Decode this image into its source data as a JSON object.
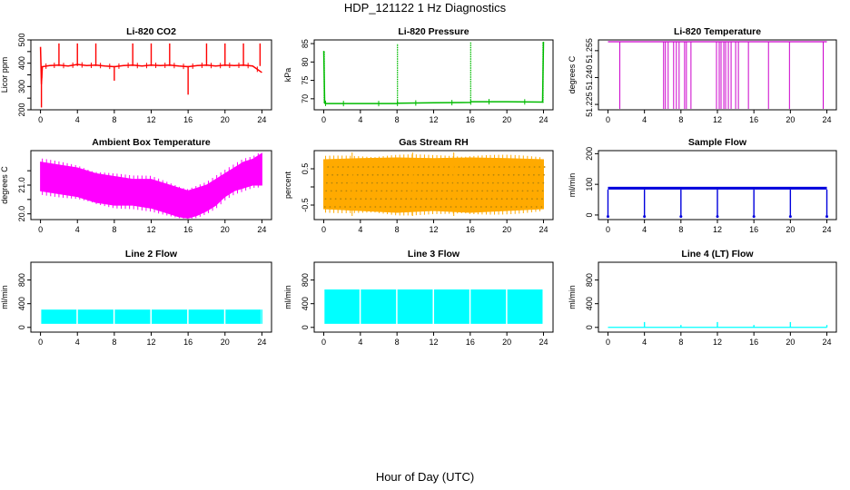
{
  "figure": {
    "title": "HDP_121122  1 Hz Diagnostics",
    "xlabel": "Hour of Day (UTC)"
  },
  "chart_data": [
    {
      "type": "line",
      "title": "Li-820 CO2",
      "ylabel": "Licor ppm",
      "color": "#ff0000",
      "xlim": [
        0,
        24
      ],
      "ylim": [
        200,
        500
      ],
      "xticks": [
        0,
        4,
        8,
        12,
        16,
        20,
        24
      ],
      "yticks": [
        200,
        250,
        300,
        350,
        400,
        450,
        500
      ],
      "yticklabels": [
        "200",
        "",
        "300",
        "",
        "400",
        "",
        "500"
      ],
      "x": [
        0.0,
        0.1,
        0.2,
        1.0,
        2.0,
        3.0,
        4.0,
        5.0,
        6.0,
        7.0,
        8.0,
        9.0,
        10.0,
        11.0,
        12.0,
        13.0,
        14.0,
        15.0,
        16.0,
        17.0,
        18.0,
        19.0,
        20.0,
        21.0,
        22.0,
        23.0,
        24.0
      ],
      "y": [
        470,
        310,
        385,
        390,
        392,
        388,
        395,
        390,
        392,
        388,
        385,
        390,
        392,
        388,
        392,
        390,
        392,
        388,
        385,
        390,
        392,
        388,
        392,
        390,
        392,
        388,
        360
      ],
      "spikes": [
        {
          "x": 0.1,
          "y": 210
        },
        {
          "x": 2.0,
          "y": 485
        },
        {
          "x": 4.0,
          "y": 485
        },
        {
          "x": 6.0,
          "y": 485
        },
        {
          "x": 8.0,
          "y": 325
        },
        {
          "x": 10.0,
          "y": 485
        },
        {
          "x": 12.0,
          "y": 485
        },
        {
          "x": 14.0,
          "y": 485
        },
        {
          "x": 16.0,
          "y": 265
        },
        {
          "x": 18.0,
          "y": 485
        },
        {
          "x": 20.0,
          "y": 485
        },
        {
          "x": 22.0,
          "y": 485
        },
        {
          "x": 23.8,
          "y": 485
        }
      ]
    },
    {
      "type": "line",
      "title": "Li-820 Pressure",
      "ylabel": "kPa",
      "color": "#00bb00",
      "xlim": [
        0,
        24
      ],
      "ylim": [
        67,
        86
      ],
      "xticks": [
        0,
        4,
        8,
        12,
        16,
        20,
        24
      ],
      "yticks": [
        70,
        75,
        80,
        85
      ],
      "yticklabels": [
        "70",
        "75",
        "80",
        "85"
      ],
      "x": [
        0.0,
        0.1,
        0.3,
        4.0,
        8.0,
        8.1,
        12.0,
        16.0,
        16.1,
        20.0,
        23.9,
        24.0
      ],
      "y": [
        83,
        68.8,
        68.7,
        68.7,
        68.7,
        68.8,
        68.9,
        69.0,
        69.2,
        69.2,
        69.1,
        85.5
      ],
      "spikes": [
        {
          "x": 0.05,
          "y": 83
        },
        {
          "x": 8.05,
          "y": 85
        },
        {
          "x": 16.05,
          "y": 85.5
        },
        {
          "x": 23.95,
          "y": 85.5
        }
      ]
    },
    {
      "type": "line",
      "title": "Li-820 Temperature",
      "ylabel": "degrees C",
      "color": "#cc00cc",
      "xlim": [
        0,
        24
      ],
      "ylim": [
        51.222,
        51.261
      ],
      "xticks": [
        0,
        4,
        8,
        12,
        16,
        20,
        24
      ],
      "yticks": [
        51.225,
        51.24,
        51.255
      ],
      "yticklabels": [
        "51.225",
        "51.240",
        "51.255"
      ],
      "baseline": 51.26,
      "drops_to": 51.222,
      "drop_hours": [
        1.3,
        6.1,
        6.3,
        6.6,
        7.2,
        7.5,
        7.8,
        8.4,
        8.6,
        9.1,
        11.9,
        12.2,
        12.4,
        12.7,
        12.9,
        13.2,
        13.5,
        14.0,
        14.3,
        15.4,
        17.6,
        19.9,
        23.6
      ]
    },
    {
      "type": "area",
      "title": "Ambient Box Temperature",
      "ylabel": "degrees C",
      "color": "#ff00ff",
      "xlim": [
        0,
        24
      ],
      "ylim": [
        19.8,
        22.2
      ],
      "xticks": [
        0,
        4,
        8,
        12,
        16,
        20,
        24
      ],
      "yticks": [
        20.0,
        20.5,
        21.0,
        21.5
      ],
      "yticklabels": [
        "20.0",
        "",
        "21.0",
        ""
      ],
      "x": [
        0,
        2,
        4,
        6,
        8,
        10,
        12,
        14,
        15,
        16,
        17,
        18,
        19,
        20,
        21,
        22,
        23,
        24
      ],
      "upper": [
        21.8,
        21.7,
        21.6,
        21.4,
        21.3,
        21.2,
        21.2,
        21.0,
        20.9,
        20.8,
        20.9,
        21.0,
        21.2,
        21.4,
        21.6,
        21.8,
        21.9,
        22.1
      ],
      "lower": [
        20.8,
        20.7,
        20.6,
        20.4,
        20.3,
        20.3,
        20.2,
        20.0,
        19.9,
        19.85,
        19.95,
        20.1,
        20.3,
        20.6,
        20.8,
        20.9,
        21.0,
        21.0
      ]
    },
    {
      "type": "area",
      "title": "Gas Stream RH",
      "ylabel": "percent",
      "color": "#ffaa00",
      "dot_color": "#b8860b",
      "xlim": [
        0,
        24
      ],
      "ylim": [
        -0.9,
        1.0
      ],
      "xticks": [
        0,
        4,
        8,
        12,
        16,
        20,
        24
      ],
      "yticks": [
        -0.5,
        0.0,
        0.5
      ],
      "yticklabels": [
        "-0.5",
        "",
        "0.5"
      ],
      "x": [
        0,
        4,
        8,
        12,
        16,
        20,
        24
      ],
      "upper": [
        0.75,
        0.78,
        0.8,
        0.78,
        0.8,
        0.78,
        0.75
      ],
      "lower": [
        -0.6,
        -0.65,
        -0.7,
        -0.65,
        -0.7,
        -0.65,
        -0.6
      ],
      "extreme_high": 0.95,
      "extreme_low": -0.8
    },
    {
      "type": "line",
      "title": "Sample Flow",
      "ylabel": "ml/min",
      "color": "#0000dd",
      "xlim": [
        0,
        24
      ],
      "ylim": [
        -15,
        210
      ],
      "xticks": [
        0,
        4,
        8,
        12,
        16,
        20,
        24
      ],
      "yticks": [
        0,
        100,
        200
      ],
      "yticklabels": [
        "0",
        "100",
        "200"
      ],
      "baseline_upper": 92,
      "baseline_lower": 83,
      "dip_hours": [
        0.0,
        4.0,
        8.0,
        12.0,
        16.0,
        20.0,
        24.0
      ],
      "dip_to": -5
    },
    {
      "type": "area",
      "title": "Line 2 Flow",
      "ylabel": "ml/min",
      "color": "#00ffff",
      "xlim": [
        0,
        24
      ],
      "ylim": [
        -80,
        1100
      ],
      "xticks": [
        0,
        4,
        8,
        12,
        16,
        20,
        24
      ],
      "yticks": [
        0,
        400,
        800
      ],
      "yticklabels": [
        "0",
        "400",
        "800"
      ],
      "band_upper": 300,
      "band_lower": 60,
      "gap_hours": [
        3.9,
        7.9,
        11.9,
        15.9,
        19.9
      ],
      "end_hour": 23.9
    },
    {
      "type": "area",
      "title": "Line 3 Flow",
      "ylabel": "ml/min",
      "color": "#00ffff",
      "xlim": [
        0,
        24
      ],
      "ylim": [
        -80,
        1100
      ],
      "xticks": [
        0,
        4,
        8,
        12,
        16,
        20,
        24
      ],
      "yticks": [
        0,
        400,
        800
      ],
      "yticklabels": [
        "0",
        "400",
        "800"
      ],
      "band_upper": 640,
      "band_lower": 60,
      "gap_hours": [
        3.9,
        7.9,
        11.9,
        15.9,
        19.9
      ],
      "end_hour": 23.9
    },
    {
      "type": "line",
      "title": "Line 4 (LT) Flow",
      "ylabel": "ml/min",
      "color": "#00ffff",
      "xlim": [
        0,
        24
      ],
      "ylim": [
        -80,
        1100
      ],
      "xticks": [
        0,
        4,
        8,
        12,
        16,
        20,
        24
      ],
      "yticks": [
        0,
        400,
        800
      ],
      "yticklabels": [
        "0",
        "400",
        "800"
      ],
      "baseline": 0,
      "spikes": [
        {
          "x": 4.0,
          "y": 90
        },
        {
          "x": 8.0,
          "y": 40
        },
        {
          "x": 12.0,
          "y": 90
        },
        {
          "x": 16.0,
          "y": 40
        },
        {
          "x": 20.0,
          "y": 90
        },
        {
          "x": 24.0,
          "y": 40
        }
      ]
    }
  ]
}
